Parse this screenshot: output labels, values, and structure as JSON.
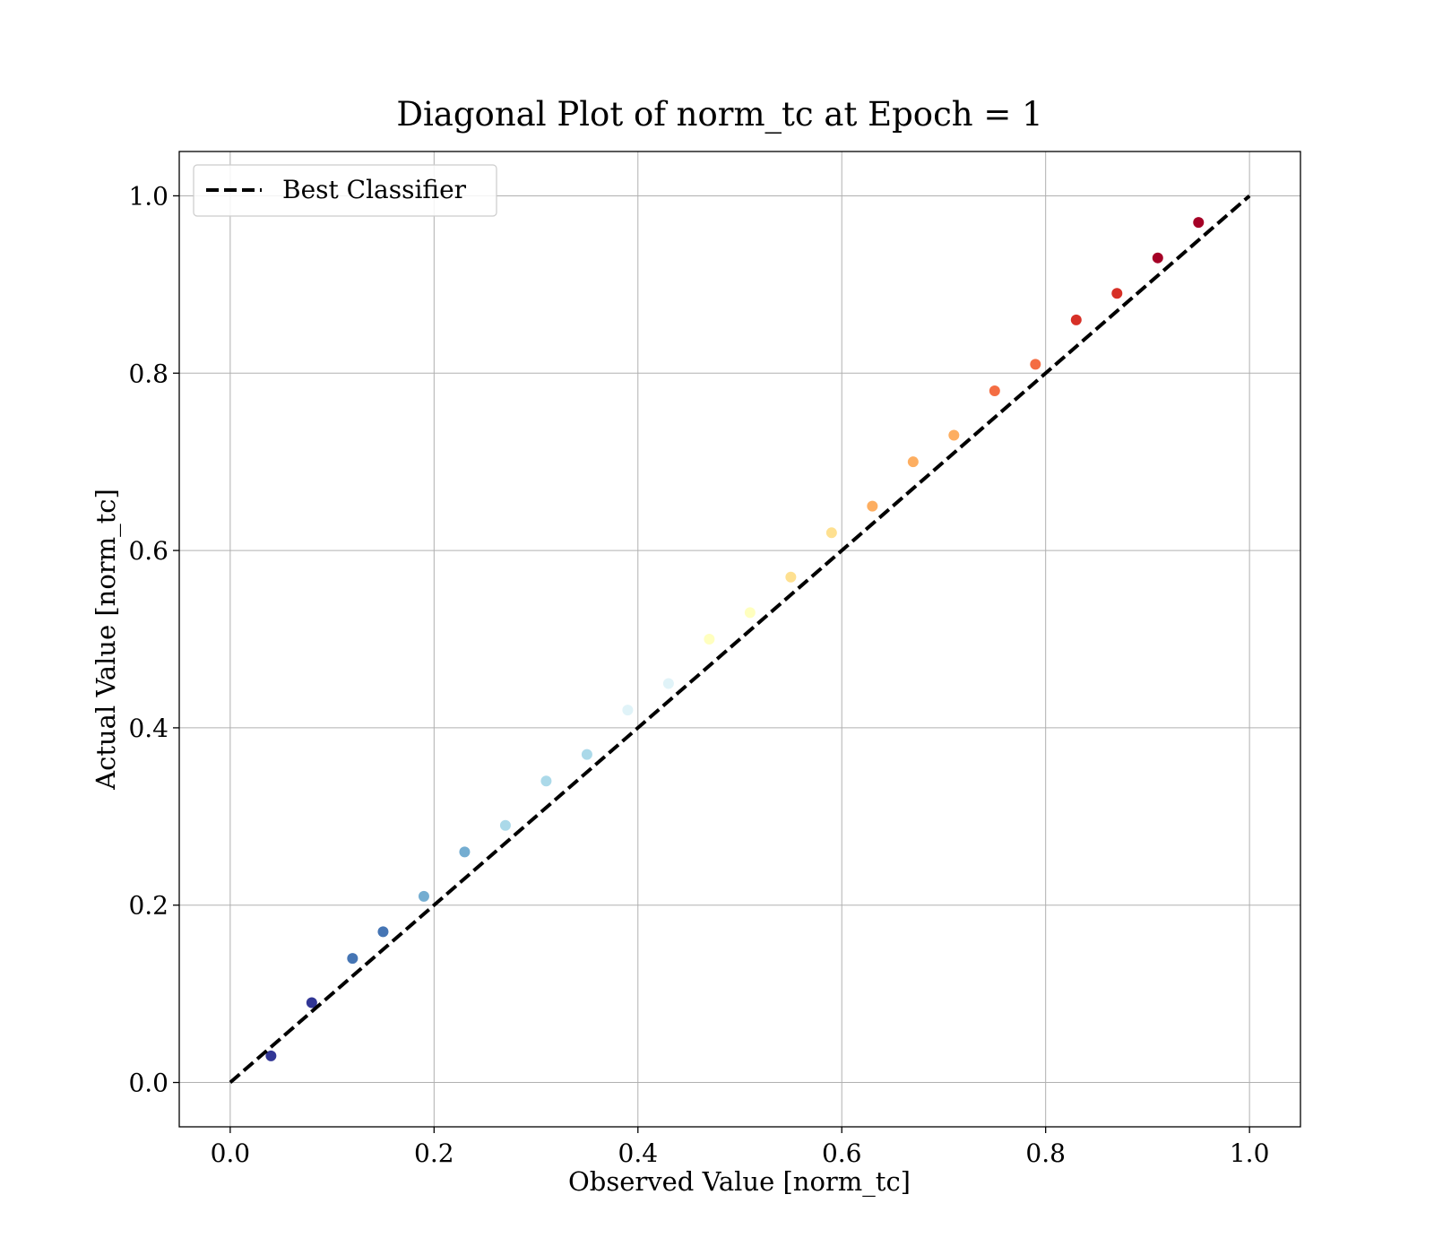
{
  "chart_data": {
    "type": "scatter",
    "title": "Diagonal Plot of norm_tc at Epoch = 1",
    "xlabel": "Observed Value [norm_tc]",
    "ylabel": "Actual Value [norm_tc]",
    "xlim": [
      -0.05,
      1.05
    ],
    "ylim": [
      -0.05,
      1.05
    ],
    "x_ticks": [
      "0.0",
      "0.2",
      "0.4",
      "0.6",
      "0.8",
      "1.0"
    ],
    "y_ticks": [
      "0.0",
      "0.2",
      "0.4",
      "0.6",
      "0.8",
      "1.0"
    ],
    "grid": true,
    "legend_position": "top-left",
    "reference_line": {
      "name": "Best Classifier",
      "x": [
        0.0,
        1.0
      ],
      "y": [
        0.0,
        1.0
      ],
      "style": "dashed",
      "color": "#000000"
    },
    "colormap": [
      "#313695",
      "#4575b4",
      "#74add1",
      "#abd9e9",
      "#e0f3f8",
      "#ffffbf",
      "#fee090",
      "#fdae61",
      "#f46d43",
      "#d73027",
      "#a50026"
    ],
    "series": [
      {
        "x": [
          0.04,
          0.08,
          0.12,
          0.15,
          0.19,
          0.23,
          0.27,
          0.31,
          0.35,
          0.39,
          0.43,
          0.47,
          0.51,
          0.55,
          0.59,
          0.63,
          0.67,
          0.71,
          0.75,
          0.79,
          0.83,
          0.87,
          0.91,
          0.95
        ],
        "y": [
          0.03,
          0.09,
          0.14,
          0.17,
          0.21,
          0.26,
          0.29,
          0.34,
          0.37,
          0.42,
          0.45,
          0.5,
          0.53,
          0.57,
          0.62,
          0.65,
          0.7,
          0.73,
          0.78,
          0.81,
          0.86,
          0.89,
          0.93,
          0.97
        ]
      }
    ]
  }
}
